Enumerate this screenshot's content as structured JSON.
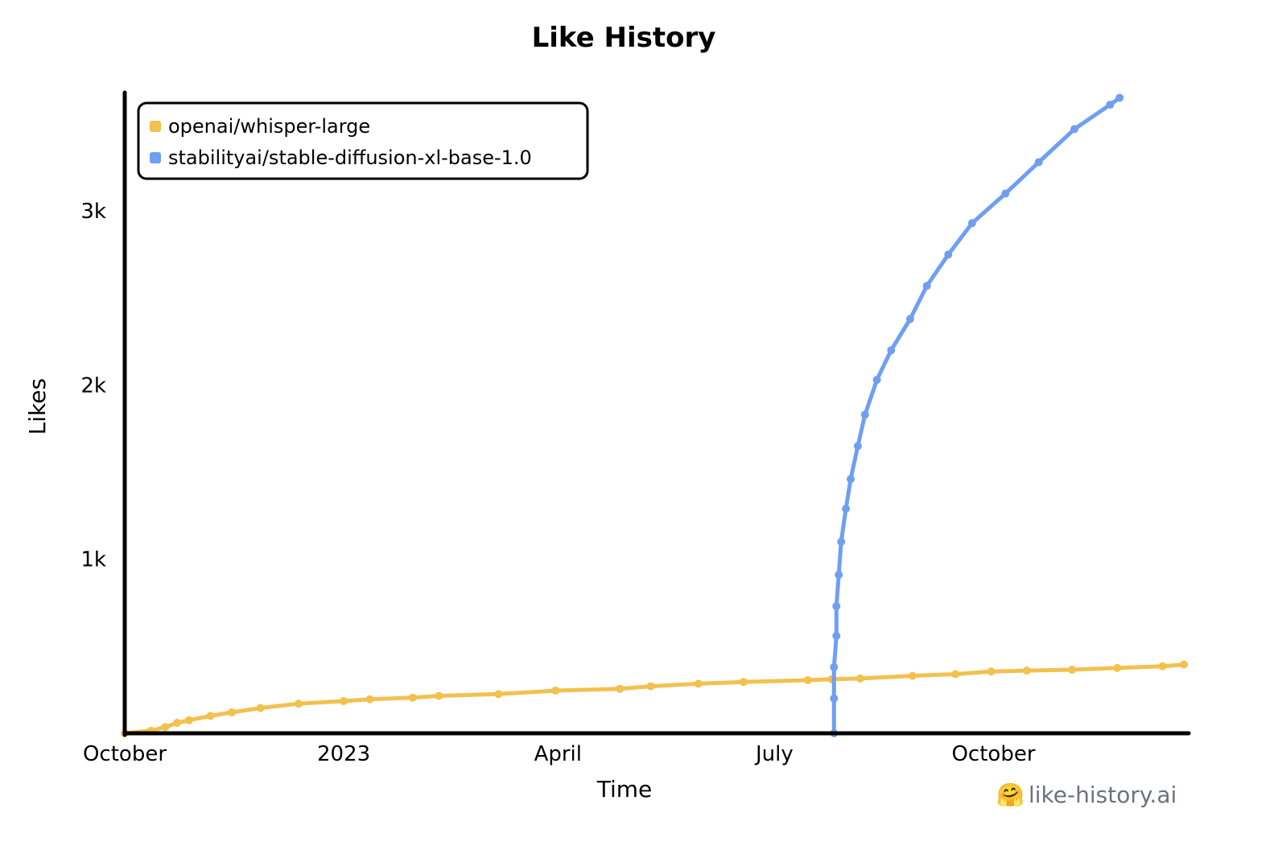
{
  "chart_data": {
    "type": "line",
    "title": "Like History",
    "xlabel": "Time",
    "ylabel": "Likes",
    "x_tick_labels": [
      {
        "date": "2022-10-01",
        "label": "October"
      },
      {
        "date": "2023-01-01",
        "label": "2023"
      },
      {
        "date": "2023-04-01",
        "label": "April"
      },
      {
        "date": "2023-07-01",
        "label": "July"
      },
      {
        "date": "2023-10-01",
        "label": "October"
      }
    ],
    "y_tick_labels": [
      {
        "value": 1000,
        "label": "1k"
      },
      {
        "value": 2000,
        "label": "2k"
      },
      {
        "value": 3000,
        "label": "3k"
      }
    ],
    "xlim": [
      "2022-10-01",
      "2023-12-22"
    ],
    "ylim": [
      0,
      3680
    ],
    "grid": false,
    "legend_position": "top-left",
    "series": [
      {
        "name": "openai/whisper-large",
        "color": "#f2c14e",
        "points": [
          [
            "2022-10-01",
            0
          ],
          [
            "2022-10-12",
            15
          ],
          [
            "2022-10-18",
            35
          ],
          [
            "2022-10-23",
            60
          ],
          [
            "2022-10-28",
            75
          ],
          [
            "2022-11-06",
            100
          ],
          [
            "2022-11-15",
            120
          ],
          [
            "2022-11-27",
            145
          ],
          [
            "2022-12-13",
            170
          ],
          [
            "2023-01-01",
            185
          ],
          [
            "2023-01-12",
            195
          ],
          [
            "2023-01-30",
            205
          ],
          [
            "2023-02-10",
            215
          ],
          [
            "2023-03-07",
            225
          ],
          [
            "2023-03-31",
            245
          ],
          [
            "2023-04-27",
            255
          ],
          [
            "2023-05-10",
            270
          ],
          [
            "2023-05-30",
            285
          ],
          [
            "2023-06-18",
            295
          ],
          [
            "2023-07-15",
            305
          ],
          [
            "2023-07-25",
            310
          ],
          [
            "2023-08-06",
            315
          ],
          [
            "2023-08-28",
            330
          ],
          [
            "2023-09-15",
            340
          ],
          [
            "2023-09-30",
            355
          ],
          [
            "2023-10-15",
            360
          ],
          [
            "2023-11-03",
            365
          ],
          [
            "2023-11-22",
            375
          ],
          [
            "2023-12-11",
            385
          ],
          [
            "2023-12-20",
            395
          ]
        ]
      },
      {
        "name": "stabilityai/stable-diffusion-xl-base-1.0",
        "color": "#6f9ff0",
        "points": [
          [
            "2023-07-26",
            0
          ],
          [
            "2023-07-26",
            200
          ],
          [
            "2023-07-26",
            380
          ],
          [
            "2023-07-27",
            560
          ],
          [
            "2023-07-27",
            730
          ],
          [
            "2023-07-28",
            910
          ],
          [
            "2023-07-29",
            1100
          ],
          [
            "2023-07-31",
            1290
          ],
          [
            "2023-08-02",
            1460
          ],
          [
            "2023-08-05",
            1650
          ],
          [
            "2023-08-08",
            1830
          ],
          [
            "2023-08-13",
            2030
          ],
          [
            "2023-08-19",
            2200
          ],
          [
            "2023-08-27",
            2380
          ],
          [
            "2023-09-03",
            2570
          ],
          [
            "2023-09-12",
            2750
          ],
          [
            "2023-09-22",
            2930
          ],
          [
            "2023-10-06",
            3100
          ],
          [
            "2023-10-20",
            3280
          ],
          [
            "2023-11-04",
            3470
          ],
          [
            "2023-11-19",
            3610
          ],
          [
            "2023-11-23",
            3650
          ]
        ]
      }
    ]
  },
  "watermark": {
    "emoji": "🤗",
    "text": "like-history.ai"
  }
}
